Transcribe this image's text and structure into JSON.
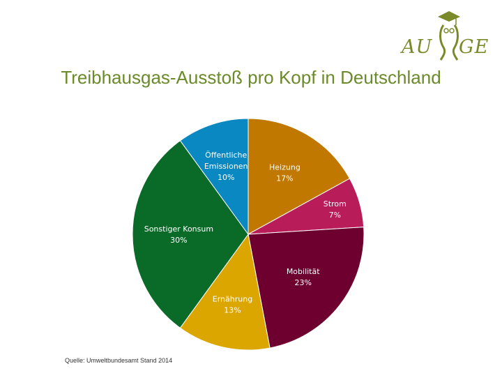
{
  "logo": {
    "left": "AU",
    "right": "GE"
  },
  "title": "Treibhausgas-Ausstoß pro Kopf in Deutschland",
  "source": "Quelle: Umweltbundesamt Stand 2014",
  "chart_data": {
    "type": "pie",
    "title": "Treibhausgas-Ausstoß pro Kopf in Deutschland",
    "slices": [
      {
        "label": "Heizung",
        "percent_label": "17%",
        "value": 17,
        "color": "#c07800"
      },
      {
        "label": "Strom",
        "percent_label": "7%",
        "value": 7,
        "color": "#b81d5a"
      },
      {
        "label": "Mobilität",
        "percent_label": "23%",
        "value": 23,
        "color": "#6e0030"
      },
      {
        "label": "Ernährung",
        "percent_label": "13%",
        "value": 13,
        "color": "#dba600"
      },
      {
        "label": "Sonstiger Konsum",
        "percent_label": "30%",
        "value": 30,
        "color": "#0a6b28"
      },
      {
        "label": "Öffentliche Emissionen",
        "percent_label": "10%",
        "value": 10,
        "color": "#0a88c2"
      }
    ]
  }
}
